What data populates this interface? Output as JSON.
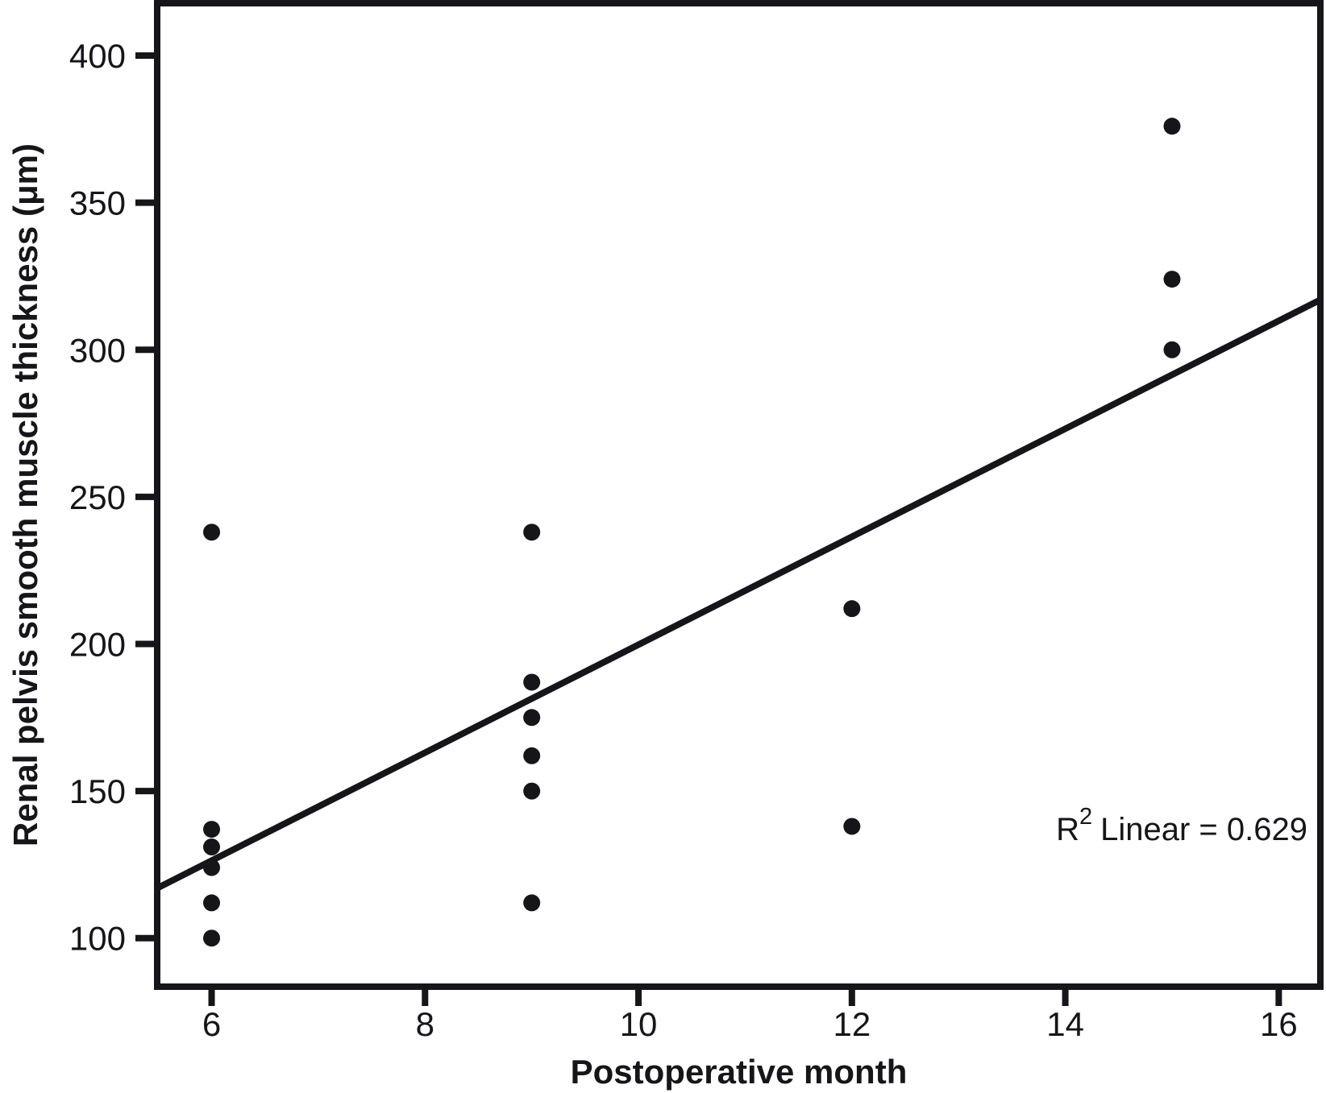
{
  "figure": {
    "background": "#ffffff",
    "ink_color": "#15151a"
  },
  "chart_data": {
    "type": "scatter",
    "title": "",
    "xlabel": "Postoperative month",
    "ylabel": "Renal pelvis smooth muscle thickness (μm)",
    "x_ticks": [
      6,
      8,
      10,
      12,
      14,
      16
    ],
    "y_ticks": [
      100,
      150,
      200,
      250,
      300,
      350,
      400
    ],
    "xlim": [
      5.49,
      16.39
    ],
    "ylim": [
      83.5,
      417.8
    ],
    "grid": false,
    "legend": "none",
    "marker": {
      "shape": "circle",
      "radius_px": 10.5,
      "color": "#15151a"
    },
    "points": [
      {
        "x": 6,
        "y": 238
      },
      {
        "x": 6,
        "y": 137
      },
      {
        "x": 6,
        "y": 131
      },
      {
        "x": 6,
        "y": 124
      },
      {
        "x": 6,
        "y": 112
      },
      {
        "x": 6,
        "y": 100
      },
      {
        "x": 9,
        "y": 238
      },
      {
        "x": 9,
        "y": 187
      },
      {
        "x": 9,
        "y": 175
      },
      {
        "x": 9,
        "y": 162
      },
      {
        "x": 9,
        "y": 150
      },
      {
        "x": 9,
        "y": 112
      },
      {
        "x": 12,
        "y": 212
      },
      {
        "x": 12,
        "y": 138
      },
      {
        "x": 15,
        "y": 376
      },
      {
        "x": 15,
        "y": 324
      },
      {
        "x": 15,
        "y": 300
      }
    ],
    "regression_line": {
      "x1": 5.49,
      "y1": 117,
      "x2": 16.39,
      "y2": 317
    },
    "annotation": {
      "full_text": "R² Linear = 0.629",
      "prefix": "R",
      "superscript": "2",
      "suffix": "Linear = 0.629"
    }
  }
}
